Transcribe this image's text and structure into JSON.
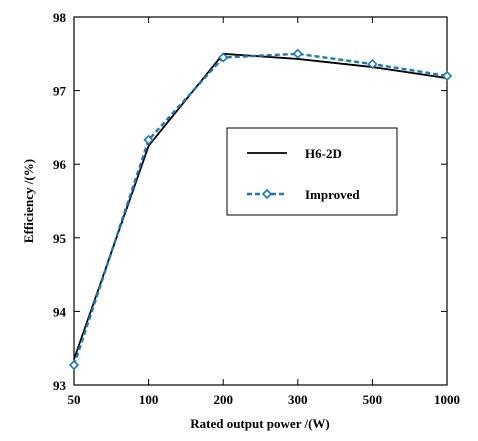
{
  "chart_data": {
    "type": "line",
    "categories": [
      "50",
      "100",
      "200",
      "300",
      "500",
      "1000"
    ],
    "series": [
      {
        "name": "H6-2D",
        "values": [
          93.35,
          96.25,
          97.5,
          97.43,
          97.32,
          97.17
        ],
        "color": "#000000",
        "style": "solid",
        "marker": "none"
      },
      {
        "name": "Improved",
        "values": [
          93.27,
          96.33,
          97.45,
          97.5,
          97.36,
          97.2
        ],
        "color": "#1f77b4",
        "style": "dashed",
        "marker": "diamond"
      }
    ],
    "xlabel": "Rated output power /(W)",
    "ylabel": "Efficiency /(%)",
    "ylim": [
      93,
      98
    ],
    "yticks": [
      "93",
      "94",
      "95",
      "96",
      "97",
      "98"
    ],
    "grid": false,
    "legend_position": "center-right"
  }
}
